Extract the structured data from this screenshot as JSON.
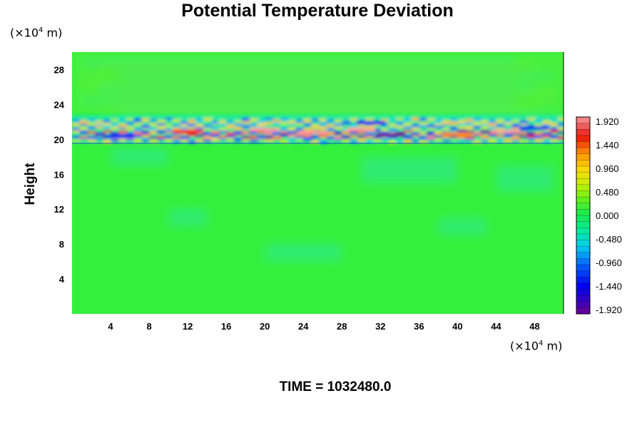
{
  "chart_data": {
    "type": "heatmap",
    "title": "Potential Temperature Deviation",
    "ylabel": "Height",
    "x_unit": "(×10⁴ m)",
    "y_unit": "(×10⁴ m)",
    "x_unit_base": "(×10",
    "x_unit_exp": "4",
    "x_unit_tail": " m)",
    "y_unit_base": "(×10",
    "y_unit_exp": "4",
    "y_unit_tail": " m)",
    "xlim": [
      0,
      51
    ],
    "ylim": [
      0,
      30
    ],
    "x_ticks": [
      "4",
      "8",
      "12",
      "16",
      "20",
      "24",
      "28",
      "32",
      "36",
      "40",
      "44",
      "48"
    ],
    "y_ticks": [
      "4",
      "8",
      "12",
      "16",
      "20",
      "24",
      "28"
    ],
    "colorbar": {
      "min": -1.92,
      "max": 1.92,
      "labels": [
        "1.920",
        "1.440",
        "0.960",
        "0.480",
        "0.000",
        "-0.480",
        "-0.960",
        "-1.440",
        "-1.920"
      ]
    },
    "background_color": "#33f03c",
    "perturbation_layer": {
      "y_center": 20.5,
      "features": "strong positive and negative deviations"
    },
    "footer": "TIME = 1032480.0"
  }
}
